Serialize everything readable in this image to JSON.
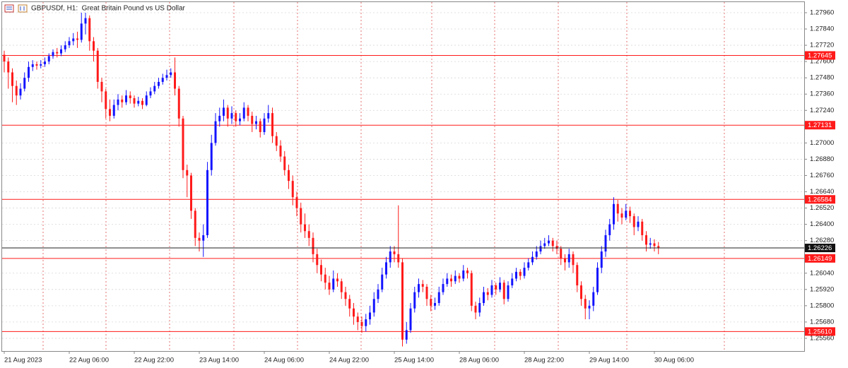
{
  "chart_data": {
    "type": "candlestick",
    "title": "GBPUSDf, H1:  Great Britain Pound vs US Dollar",
    "up_color": "#1414ff",
    "down_color": "#ff1a1a",
    "grid": true,
    "ylim": [
      1.25466,
      1.28038
    ],
    "yticks": [
      {
        "value": 1.2796,
        "label": "1.27960"
      },
      {
        "value": 1.2784,
        "label": "1.27840"
      },
      {
        "value": 1.2772,
        "label": "1.27720"
      },
      {
        "value": 1.276,
        "label": "1.27600"
      },
      {
        "value": 1.2748,
        "label": "1.27480"
      },
      {
        "value": 1.2736,
        "label": "1.27360"
      },
      {
        "value": 1.2724,
        "label": "1.27240"
      },
      {
        "value": 1.27,
        "label": "1.27000"
      },
      {
        "value": 1.2688,
        "label": "1.26880"
      },
      {
        "value": 1.2676,
        "label": "1.26760"
      },
      {
        "value": 1.2664,
        "label": "1.26640"
      },
      {
        "value": 1.2652,
        "label": "1.26520"
      },
      {
        "value": 1.264,
        "label": "1.26400"
      },
      {
        "value": 1.2628,
        "label": "1.26280"
      },
      {
        "value": 1.2604,
        "label": "1.26040"
      },
      {
        "value": 1.2592,
        "label": "1.25920"
      },
      {
        "value": 1.258,
        "label": "1.25800"
      },
      {
        "value": 1.2568,
        "label": "1.25680"
      },
      {
        "value": 1.2556,
        "label": "1.25560"
      }
    ],
    "xticks": [
      {
        "value": 0,
        "label": "21 Aug 2023"
      },
      {
        "value": 16,
        "label": "22 Aug 06:00"
      },
      {
        "value": 32,
        "label": "22 Aug 22:00"
      },
      {
        "value": 48,
        "label": "23 Aug 14:00"
      },
      {
        "value": 64,
        "label": "24 Aug 06:00"
      },
      {
        "value": 80,
        "label": "24 Aug 22:00"
      },
      {
        "value": 96,
        "label": "25 Aug 14:00"
      },
      {
        "value": 112,
        "label": "28 Aug 06:00"
      },
      {
        "value": 128,
        "label": "28 Aug 22:00"
      },
      {
        "value": 144,
        "label": "29 Aug 14:00"
      },
      {
        "value": 160,
        "label": "30 Aug 06:00"
      }
    ],
    "levels": [
      1.27645,
      1.27131,
      1.26584,
      1.26149,
      {
        "value": 1.2561,
        "label": "1.25610"
      }
    ],
    "level_color": "#ff1a1a",
    "current_price": 1.26226,
    "candles": [
      [
        1.2765,
        1.2768,
        1.2752,
        1.276
      ],
      [
        1.276,
        1.2763,
        1.274,
        1.2752
      ],
      [
        1.2752,
        1.2755,
        1.273,
        1.2742
      ],
      [
        1.2742,
        1.2746,
        1.2728,
        1.2735
      ],
      [
        1.2735,
        1.2744,
        1.2732,
        1.274
      ],
      [
        1.274,
        1.2752,
        1.2738,
        1.2748
      ],
      [
        1.2748,
        1.276,
        1.2745,
        1.2756
      ],
      [
        1.2756,
        1.2761,
        1.2753,
        1.2758
      ],
      [
        1.2758,
        1.276,
        1.2754,
        1.2757
      ],
      [
        1.2757,
        1.2761,
        1.2755,
        1.2758
      ],
      [
        1.2758,
        1.2763,
        1.2756,
        1.276
      ],
      [
        1.276,
        1.2766,
        1.2758,
        1.2764
      ],
      [
        1.2764,
        1.2769,
        1.2762,
        1.2767
      ],
      [
        1.2767,
        1.277,
        1.2763,
        1.2766
      ],
      [
        1.2766,
        1.2772,
        1.2764,
        1.2769
      ],
      [
        1.2769,
        1.2775,
        1.2767,
        1.2772
      ],
      [
        1.2772,
        1.2778,
        1.277,
        1.2775
      ],
      [
        1.2775,
        1.2781,
        1.2772,
        1.2777
      ],
      [
        1.2777,
        1.2782,
        1.277,
        1.2776
      ],
      [
        1.2776,
        1.2796,
        1.2774,
        1.2788
      ],
      [
        1.2788,
        1.2796,
        1.278,
        1.2792
      ],
      [
        1.2792,
        1.2794,
        1.2768,
        1.2775
      ],
      [
        1.2775,
        1.2778,
        1.276,
        1.2768
      ],
      [
        1.2768,
        1.277,
        1.274,
        1.2745
      ],
      [
        1.2745,
        1.2748,
        1.273,
        1.2738
      ],
      [
        1.2738,
        1.274,
        1.2718,
        1.2725
      ],
      [
        1.2725,
        1.2732,
        1.2716,
        1.272
      ],
      [
        1.272,
        1.2732,
        1.2718,
        1.2728
      ],
      [
        1.2728,
        1.2736,
        1.2724,
        1.2732
      ],
      [
        1.2732,
        1.2735,
        1.2726,
        1.273
      ],
      [
        1.273,
        1.2739,
        1.2728,
        1.2735
      ],
      [
        1.2735,
        1.2738,
        1.2729,
        1.2733
      ],
      [
        1.2733,
        1.2735,
        1.2726,
        1.2729
      ],
      [
        1.2729,
        1.2734,
        1.2727,
        1.2731
      ],
      [
        1.2731,
        1.2733,
        1.2725,
        1.2728
      ],
      [
        1.2728,
        1.2738,
        1.2727,
        1.2735
      ],
      [
        1.2735,
        1.2741,
        1.2733,
        1.2738
      ],
      [
        1.2738,
        1.2745,
        1.2736,
        1.2742
      ],
      [
        1.2742,
        1.2748,
        1.274,
        1.2745
      ],
      [
        1.2745,
        1.2751,
        1.2743,
        1.2748
      ],
      [
        1.2748,
        1.2754,
        1.2746,
        1.275
      ],
      [
        1.275,
        1.2755,
        1.2748,
        1.2752
      ],
      [
        1.2752,
        1.2763,
        1.2735,
        1.274
      ],
      [
        1.274,
        1.2742,
        1.2712,
        1.2718
      ],
      [
        1.2718,
        1.272,
        1.2674,
        1.268
      ],
      [
        1.268,
        1.2684,
        1.266,
        1.2676
      ],
      [
        1.2676,
        1.2678,
        1.2644,
        1.265
      ],
      [
        1.265,
        1.2652,
        1.2624,
        1.263
      ],
      [
        1.263,
        1.2634,
        1.262,
        1.2628
      ],
      [
        1.2628,
        1.264,
        1.2616,
        1.2632
      ],
      [
        1.2632,
        1.2686,
        1.263,
        1.268
      ],
      [
        1.268,
        1.2706,
        1.2676,
        1.27
      ],
      [
        1.27,
        1.2722,
        1.2698,
        1.2716
      ],
      [
        1.2716,
        1.2726,
        1.2712,
        1.272
      ],
      [
        1.272,
        1.2732,
        1.2716,
        1.2726
      ],
      [
        1.2726,
        1.2728,
        1.2712,
        1.2718
      ],
      [
        1.2718,
        1.2727,
        1.2714,
        1.2722
      ],
      [
        1.2722,
        1.2724,
        1.2712,
        1.2716
      ],
      [
        1.2716,
        1.2722,
        1.2713,
        1.2718
      ],
      [
        1.2718,
        1.273,
        1.2716,
        1.2726
      ],
      [
        1.2726,
        1.2728,
        1.2716,
        1.272
      ],
      [
        1.272,
        1.2723,
        1.2708,
        1.2714
      ],
      [
        1.2714,
        1.272,
        1.271,
        1.2716
      ],
      [
        1.2716,
        1.2718,
        1.2704,
        1.2708
      ],
      [
        1.2708,
        1.2722,
        1.2706,
        1.2718
      ],
      [
        1.2718,
        1.2728,
        1.2715,
        1.2722
      ],
      [
        1.2722,
        1.2726,
        1.27,
        1.2705
      ],
      [
        1.2705,
        1.2708,
        1.2694,
        1.2698
      ],
      [
        1.2698,
        1.2702,
        1.2686,
        1.269
      ],
      [
        1.269,
        1.2694,
        1.2676,
        1.268
      ],
      [
        1.268,
        1.2684,
        1.2666,
        1.2672
      ],
      [
        1.2672,
        1.2676,
        1.2654,
        1.266
      ],
      [
        1.266,
        1.2664,
        1.2646,
        1.2652
      ],
      [
        1.2652,
        1.2656,
        1.2634,
        1.264
      ],
      [
        1.264,
        1.2648,
        1.263,
        1.2635
      ],
      [
        1.2635,
        1.264,
        1.2624,
        1.263
      ],
      [
        1.263,
        1.2634,
        1.2612,
        1.2618
      ],
      [
        1.2618,
        1.2622,
        1.2604,
        1.261
      ],
      [
        1.261,
        1.2614,
        1.2598,
        1.2603
      ],
      [
        1.2603,
        1.2608,
        1.2592,
        1.2597
      ],
      [
        1.2597,
        1.2602,
        1.2588,
        1.2592
      ],
      [
        1.2592,
        1.2606,
        1.259,
        1.26
      ],
      [
        1.26,
        1.2604,
        1.2594,
        1.2598
      ],
      [
        1.2598,
        1.26,
        1.2585,
        1.259
      ],
      [
        1.259,
        1.2594,
        1.258,
        1.2585
      ],
      [
        1.2585,
        1.2588,
        1.2572,
        1.2578
      ],
      [
        1.2578,
        1.2582,
        1.2566,
        1.2572
      ],
      [
        1.2572,
        1.2575,
        1.2562,
        1.2568
      ],
      [
        1.2568,
        1.2572,
        1.256,
        1.2565
      ],
      [
        1.2565,
        1.2574,
        1.2561,
        1.257
      ],
      [
        1.257,
        1.258,
        1.2566,
        1.2575
      ],
      [
        1.2575,
        1.259,
        1.2572,
        1.2585
      ],
      [
        1.2585,
        1.2596,
        1.2582,
        1.2592
      ],
      [
        1.2592,
        1.2608,
        1.259,
        1.2603
      ],
      [
        1.2603,
        1.2616,
        1.26,
        1.2612
      ],
      [
        1.2612,
        1.2624,
        1.2608,
        1.262
      ],
      [
        1.262,
        1.2624,
        1.2612,
        1.2618
      ],
      [
        1.2618,
        1.2654,
        1.2608,
        1.2612
      ],
      [
        1.2612,
        1.2615,
        1.255,
        1.2555
      ],
      [
        1.2555,
        1.2568,
        1.2552,
        1.2562
      ],
      [
        1.2562,
        1.2582,
        1.256,
        1.2578
      ],
      [
        1.2578,
        1.2594,
        1.2575,
        1.259
      ],
      [
        1.259,
        1.26,
        1.2586,
        1.2596
      ],
      [
        1.2596,
        1.2599,
        1.259,
        1.2594
      ],
      [
        1.2594,
        1.2596,
        1.258,
        1.2585
      ],
      [
        1.2585,
        1.2588,
        1.2576,
        1.258
      ],
      [
        1.258,
        1.2586,
        1.2577,
        1.2582
      ],
      [
        1.2582,
        1.2594,
        1.258,
        1.259
      ],
      [
        1.259,
        1.26,
        1.2588,
        1.2596
      ],
      [
        1.2596,
        1.2604,
        1.2594,
        1.26
      ],
      [
        1.26,
        1.2603,
        1.2594,
        1.2598
      ],
      [
        1.2598,
        1.2606,
        1.2596,
        1.2602
      ],
      [
        1.2602,
        1.2604,
        1.2597,
        1.26
      ],
      [
        1.26,
        1.261,
        1.2598,
        1.2606
      ],
      [
        1.2606,
        1.2608,
        1.26,
        1.2604
      ],
      [
        1.2604,
        1.2606,
        1.2576,
        1.258
      ],
      [
        1.258,
        1.2583,
        1.257,
        1.2575
      ],
      [
        1.2575,
        1.2586,
        1.2572,
        1.2582
      ],
      [
        1.2582,
        1.2594,
        1.258,
        1.259
      ],
      [
        1.259,
        1.2593,
        1.2584,
        1.2588
      ],
      [
        1.2588,
        1.2599,
        1.2586,
        1.2595
      ],
      [
        1.2595,
        1.2597,
        1.2588,
        1.2592
      ],
      [
        1.2592,
        1.2601,
        1.259,
        1.2597
      ],
      [
        1.2597,
        1.2599,
        1.2581,
        1.2585
      ],
      [
        1.2585,
        1.2598,
        1.2583,
        1.2595
      ],
      [
        1.2595,
        1.2604,
        1.2593,
        1.26
      ],
      [
        1.26,
        1.2608,
        1.2598,
        1.2605
      ],
      [
        1.2605,
        1.2607,
        1.2599,
        1.2602
      ],
      [
        1.2602,
        1.2612,
        1.26,
        1.2608
      ],
      [
        1.2608,
        1.2615,
        1.2606,
        1.2612
      ],
      [
        1.2612,
        1.262,
        1.261,
        1.2616
      ],
      [
        1.2616,
        1.2624,
        1.2614,
        1.262
      ],
      [
        1.262,
        1.2628,
        1.2618,
        1.2624
      ],
      [
        1.2624,
        1.263,
        1.2622,
        1.2626
      ],
      [
        1.2626,
        1.2632,
        1.2624,
        1.2628
      ],
      [
        1.2628,
        1.263,
        1.262,
        1.2624
      ],
      [
        1.2624,
        1.2628,
        1.2618,
        1.2622
      ],
      [
        1.2622,
        1.2624,
        1.261,
        1.2615
      ],
      [
        1.2615,
        1.2618,
        1.2606,
        1.2612
      ],
      [
        1.2612,
        1.2622,
        1.2608,
        1.2618
      ],
      [
        1.2618,
        1.262,
        1.2604,
        1.261
      ],
      [
        1.261,
        1.2612,
        1.259,
        1.2595
      ],
      [
        1.2595,
        1.2598,
        1.258,
        1.2585
      ],
      [
        1.2585,
        1.2588,
        1.257,
        1.2578
      ],
      [
        1.2578,
        1.2584,
        1.257,
        1.258
      ],
      [
        1.258,
        1.2594,
        1.2576,
        1.259
      ],
      [
        1.259,
        1.2612,
        1.2588,
        1.2608
      ],
      [
        1.2608,
        1.2624,
        1.2604,
        1.262
      ],
      [
        1.262,
        1.2636,
        1.2616,
        1.2632
      ],
      [
        1.2632,
        1.2644,
        1.2628,
        1.264
      ],
      [
        1.264,
        1.266,
        1.2636,
        1.2655
      ],
      [
        1.2655,
        1.2658,
        1.2642,
        1.2648
      ],
      [
        1.2648,
        1.2652,
        1.264,
        1.2645
      ],
      [
        1.2645,
        1.2655,
        1.2643,
        1.265
      ],
      [
        1.265,
        1.2653,
        1.2641,
        1.2646
      ],
      [
        1.2646,
        1.2648,
        1.2632,
        1.2638
      ],
      [
        1.2638,
        1.2646,
        1.2635,
        1.2642
      ],
      [
        1.2642,
        1.2644,
        1.2628,
        1.2632
      ],
      [
        1.2632,
        1.2635,
        1.262,
        1.2625
      ],
      [
        1.2625,
        1.263,
        1.2622,
        1.2626
      ],
      [
        1.2626,
        1.2629,
        1.262,
        1.2624
      ],
      [
        1.2624,
        1.2627,
        1.2618,
        1.26226
      ]
    ]
  }
}
